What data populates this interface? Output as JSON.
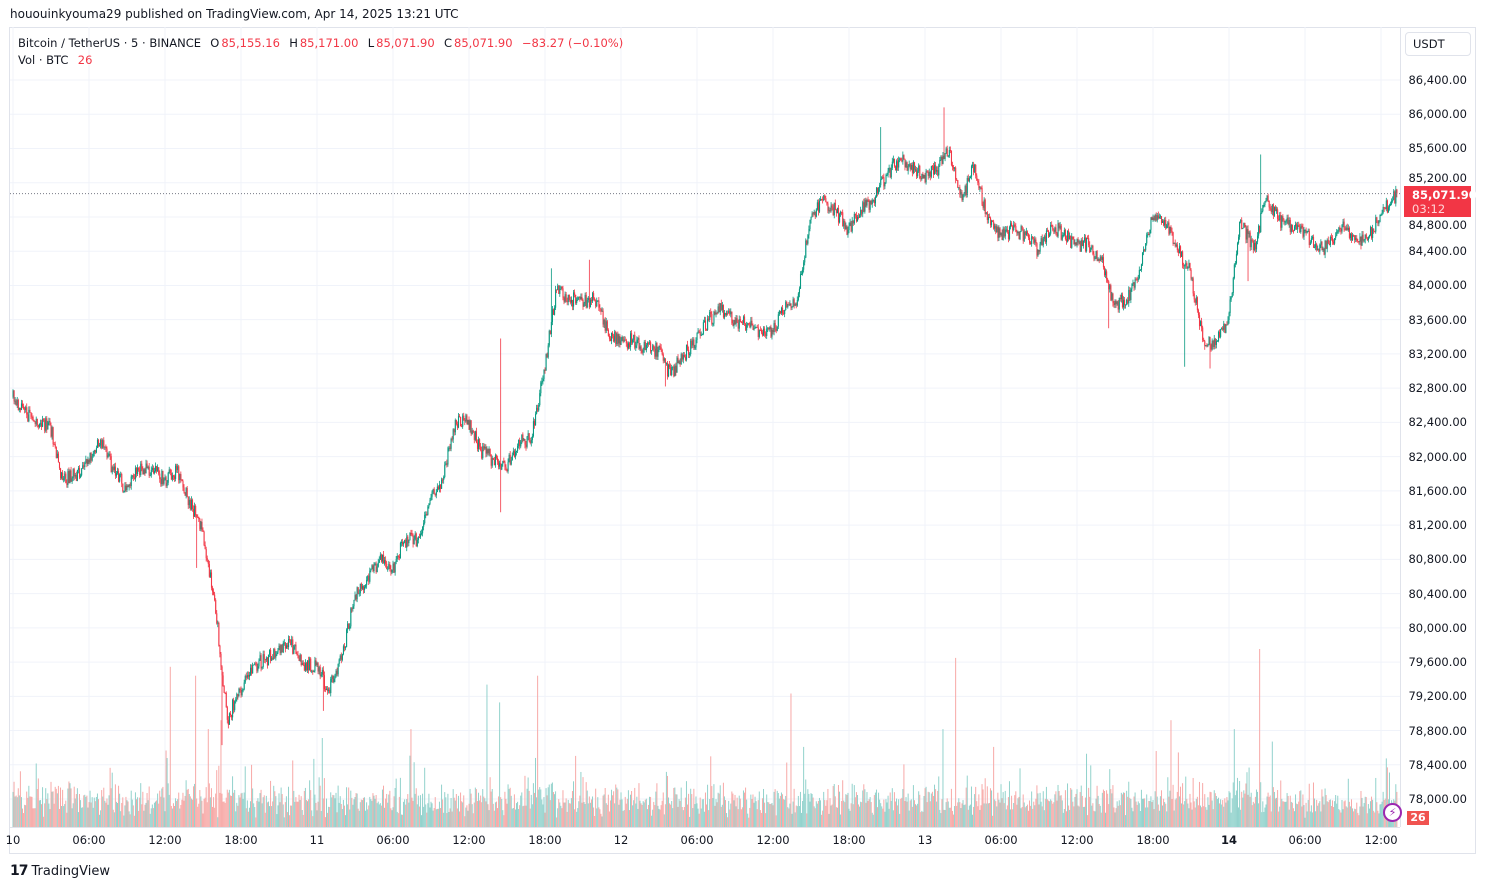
{
  "header": {
    "published": "hououinkyouma29 published on TradingView.com, Apr 14, 2025 13:21 UTC"
  },
  "legend": {
    "symbol": "Bitcoin / TetherUS · 5 · BINANCE",
    "o_label": "O",
    "o": "85,155.16",
    "h_label": "H",
    "h": "85,171.00",
    "l_label": "L",
    "l": "85,071.90",
    "c_label": "C",
    "c": "85,071.90",
    "change": "−83.27 (−0.10%)",
    "vol_label": "Vol · BTC",
    "vol": "26"
  },
  "price_axis": {
    "currency": "USDT",
    "current_price": "85,071.90",
    "countdown": "03:12",
    "volume_badge": "26"
  },
  "footer": {
    "brand": "TradingView"
  },
  "colors": {
    "up": "#089981",
    "down": "#f23645",
    "vol_up": "#92d2cc",
    "vol_down": "#f7a9a7",
    "grid": "#f0f3fa"
  },
  "chart_data": {
    "type": "candlestick",
    "title": "Bitcoin / TetherUS · 5 · BINANCE",
    "interval": "5m",
    "ylabel": "USDT",
    "ylim": [
      77800,
      86700
    ],
    "y_ticks": [
      "78,000.00",
      "78,400.00",
      "78,800.00",
      "79,200.00",
      "79,600.00",
      "80,000.00",
      "80,400.00",
      "80,800.00",
      "81,200.00",
      "81,600.00",
      "82,000.00",
      "82,400.00",
      "82,800.00",
      "83,200.00",
      "83,600.00",
      "84,000.00",
      "84,400.00",
      "84,800.00",
      "85,200.00",
      "85,600.00",
      "86,000.00",
      "86,400.00"
    ],
    "x_ticks": [
      {
        "hour": 0,
        "label": "10"
      },
      {
        "hour": 6,
        "label": "06:00"
      },
      {
        "hour": 12,
        "label": "12:00"
      },
      {
        "hour": 18,
        "label": "18:00"
      },
      {
        "hour": 24,
        "label": "11"
      },
      {
        "hour": 30,
        "label": "06:00"
      },
      {
        "hour": 36,
        "label": "12:00"
      },
      {
        "hour": 42,
        "label": "18:00"
      },
      {
        "hour": 48,
        "label": "12"
      },
      {
        "hour": 54,
        "label": "06:00"
      },
      {
        "hour": 60,
        "label": "12:00"
      },
      {
        "hour": 66,
        "label": "18:00"
      },
      {
        "hour": 72,
        "label": "13"
      },
      {
        "hour": 78,
        "label": "06:00"
      },
      {
        "hour": 84,
        "label": "12:00"
      },
      {
        "hour": 90,
        "label": "18:00"
      },
      {
        "hour": 96,
        "label": "14",
        "bold": true
      },
      {
        "hour": 102,
        "label": "06:00"
      },
      {
        "hour": 108,
        "label": "12:00"
      }
    ],
    "start_price": 82700,
    "hourly_close": [
      82546,
      82370,
      82370,
      81728,
      81786,
      81962,
      82195,
      81845,
      81611,
      81845,
      81845,
      81728,
      81845,
      81494,
      81144,
      80326,
      78925,
      79275,
      79567,
      79626,
      79742,
      79801,
      79567,
      79567,
      79275,
      79626,
      80326,
      80560,
      80794,
      80677,
      81027,
      81027,
      81494,
      81728,
      82429,
      82429,
      82078,
      81962,
      81845,
      82195,
      82195,
      83013,
      83947,
      83830,
      83830,
      83830,
      83480,
      83305,
      83363,
      83246,
      83246,
      82954,
      83188,
      83363,
      83597,
      83714,
      83597,
      83538,
      83480,
      83480,
      83714,
      83830,
      84765,
      84998,
      84882,
      84648,
      84882,
      84998,
      85290,
      85466,
      85407,
      85290,
      85349,
      85582,
      84998,
      85407,
      84765,
      84590,
      84648,
      84590,
      84414,
      84706,
      84590,
      84473,
      84473,
      84298,
      83772,
      83830,
      84181,
      84765,
      84765,
      84414,
      84181,
      83363,
      83305,
      83597,
      84765,
      84414,
      84998,
      84765,
      84706,
      84648,
      84414,
      84473,
      84706,
      84531,
      84531,
      84823,
      84998,
      85071.9
    ],
    "last_hour_candles": 4,
    "extremes": [
      {
        "hour": 14,
        "price": 80700
      },
      {
        "hour": 16,
        "price": 78630
      },
      {
        "hour": 24,
        "price": 79030
      },
      {
        "hour": 38,
        "price": 83380
      },
      {
        "hour": 38,
        "price": 81350
      },
      {
        "hour": 42,
        "price": 84200
      },
      {
        "hour": 45,
        "price": 84300
      },
      {
        "hour": 51,
        "price": 82820
      },
      {
        "hour": 68,
        "price": 85850
      },
      {
        "hour": 73,
        "price": 86080
      },
      {
        "hour": 86,
        "price": 83500
      },
      {
        "hour": 92,
        "price": 83050
      },
      {
        "hour": 94,
        "price": 83030
      },
      {
        "hour": 98,
        "price": 85530
      },
      {
        "hour": 97,
        "price": 84050
      }
    ],
    "volume_spikes": [
      {
        "hour": 12,
        "rel": 0.9
      },
      {
        "hour": 14,
        "rel": 0.85
      },
      {
        "hour": 15,
        "rel": 0.55
      },
      {
        "hour": 16,
        "rel": 0.6
      },
      {
        "hour": 24,
        "rel": 0.5
      },
      {
        "hour": 31,
        "rel": 0.55
      },
      {
        "hour": 37,
        "rel": 0.8
      },
      {
        "hour": 38,
        "rel": 0.7
      },
      {
        "hour": 41,
        "rel": 0.85
      },
      {
        "hour": 61,
        "rel": 0.75
      },
      {
        "hour": 62,
        "rel": 0.45
      },
      {
        "hour": 73,
        "rel": 0.55
      },
      {
        "hour": 74,
        "rel": 0.95
      },
      {
        "hour": 77,
        "rel": 0.45
      },
      {
        "hour": 91,
        "rel": 0.6
      },
      {
        "hour": 96,
        "rel": 0.55
      },
      {
        "hour": 98,
        "rel": 1.0
      },
      {
        "hour": 99,
        "rel": 0.48
      }
    ]
  }
}
